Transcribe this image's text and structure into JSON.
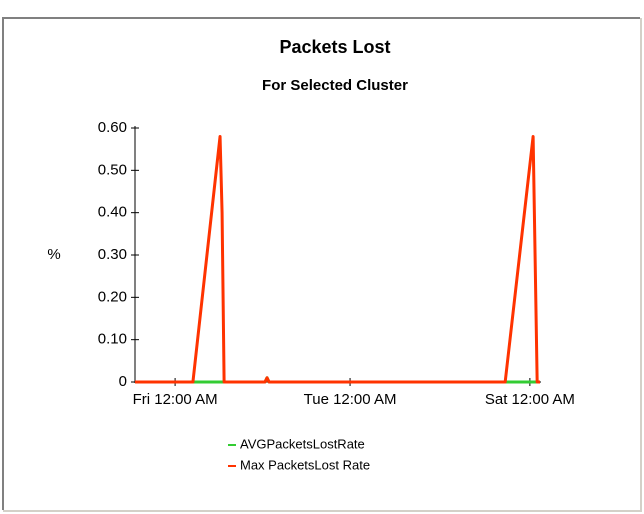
{
  "chart_data": {
    "type": "line",
    "title": "Packets Lost",
    "subtitle": "For Selected Cluster",
    "ylabel": "%",
    "x": [
      0,
      14.3,
      21.0,
      21.5,
      22.0,
      32.1,
      32.6,
      33.1,
      91.4,
      98.3,
      99.3,
      100
    ],
    "series": [
      {
        "name": "AVGPacketsLostRate",
        "color": "#33cc33",
        "values": [
          0,
          0,
          0,
          0,
          0,
          0,
          0.01,
          0,
          0,
          0,
          0,
          0
        ]
      },
      {
        "name": "Max PacketsLost Rate",
        "color": "#ff3300",
        "values": [
          0,
          0,
          0.58,
          0.4,
          0,
          0,
          0.01,
          0,
          0,
          0.58,
          0,
          0
        ]
      }
    ],
    "xlim": [
      0,
      100
    ],
    "xticks": [
      {
        "value": 9.9,
        "label": "Fri 12:00 AM"
      },
      {
        "value": 53.1,
        "label": "Tue 12:00 AM"
      },
      {
        "value": 97.5,
        "label": "Sat 12:00 AM"
      }
    ],
    "ylim": [
      0,
      0.6
    ],
    "yticks": [
      0,
      {
        "value": 0.1,
        "label": "0.10"
      },
      {
        "value": 0.2,
        "label": "0.20"
      },
      {
        "value": 0.3,
        "label": "0.30"
      },
      {
        "value": 0.4,
        "label": "0.40"
      },
      {
        "value": 0.5,
        "label": "0.50"
      },
      {
        "value": 0.6,
        "label": "0.60"
      }
    ]
  }
}
